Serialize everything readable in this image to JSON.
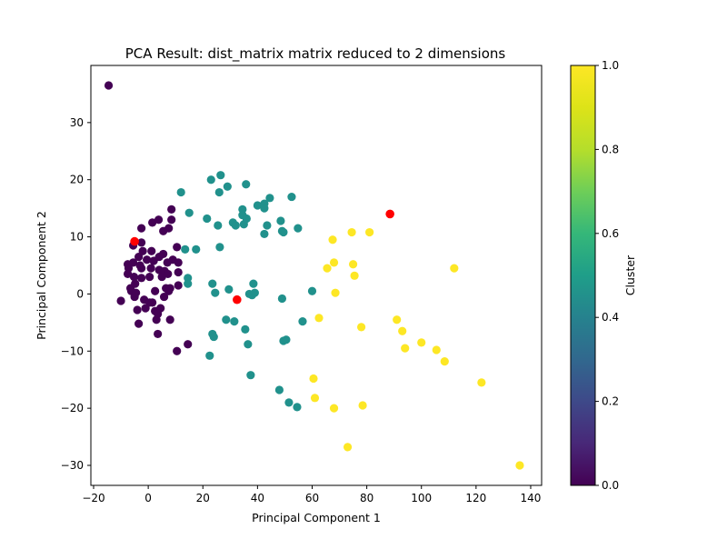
{
  "chart_data": {
    "type": "scatter",
    "title": "PCA Result: dist_matrix matrix reduced to 2 dimensions",
    "xlabel": "Principal Component 1",
    "ylabel": "Principal Component 2",
    "xlim": [
      -21,
      144
    ],
    "ylim": [
      -33.5,
      40
    ],
    "x_ticks": [
      -20,
      0,
      20,
      40,
      60,
      80,
      100,
      120,
      140
    ],
    "x_tick_labels": [
      "−20",
      "0",
      "20",
      "40",
      "60",
      "80",
      "100",
      "120",
      "140"
    ],
    "y_ticks": [
      -30,
      -20,
      -10,
      0,
      10,
      20,
      30
    ],
    "y_tick_labels": [
      "−30",
      "−20",
      "−10",
      "0",
      "10",
      "20",
      "30"
    ],
    "grid": false,
    "colorbar": {
      "label": "Cluster",
      "range": [
        0,
        1
      ],
      "colormap": "viridis",
      "ticks": [
        0,
        0.2,
        0.4,
        0.6,
        0.8,
        1.0
      ],
      "tick_labels": [
        "0.0",
        "0.2",
        "0.4",
        "0.6",
        "0.8",
        "1.0"
      ]
    },
    "series": [
      {
        "cluster": 0,
        "color": "#440154",
        "points": [
          [
            -14.5,
            36.5
          ],
          [
            -10,
            -1.2
          ],
          [
            -7.5,
            5.2
          ],
          [
            -7.5,
            3.5
          ],
          [
            -7.2,
            4.5
          ],
          [
            -6.5,
            1.0
          ],
          [
            -6.2,
            0.5
          ],
          [
            -5.5,
            8.5
          ],
          [
            -5.5,
            5.5
          ],
          [
            -5.2,
            3.0
          ],
          [
            -5.0,
            -0.5
          ],
          [
            -4.8,
            1.8
          ],
          [
            -4.5,
            0.2
          ],
          [
            -4.0,
            -2.8
          ],
          [
            -3.5,
            -5.2
          ],
          [
            -3.5,
            6.5
          ],
          [
            -3.0,
            5.0
          ],
          [
            -2.5,
            11.5
          ],
          [
            -2.5,
            4.5
          ],
          [
            -2.5,
            2.8
          ],
          [
            -2.5,
            9.0
          ],
          [
            -2.0,
            7.5
          ],
          [
            -1.5,
            -1.0
          ],
          [
            -1.0,
            -2.5
          ],
          [
            -0.5,
            6.0
          ],
          [
            0.5,
            -1.5
          ],
          [
            0.5,
            3.0
          ],
          [
            1.0,
            4.5
          ],
          [
            1.2,
            7.5
          ],
          [
            1.5,
            12.5
          ],
          [
            1.5,
            -1.5
          ],
          [
            2.0,
            5.8
          ],
          [
            2.5,
            -3.0
          ],
          [
            2.5,
            0.5
          ],
          [
            3.0,
            -4.5
          ],
          [
            3.5,
            -3.5
          ],
          [
            3.5,
            -7.0
          ],
          [
            3.8,
            13.0
          ],
          [
            4.0,
            6.5
          ],
          [
            4.0,
            4.2
          ],
          [
            4.5,
            -2.5
          ],
          [
            5.0,
            3.0
          ],
          [
            5.5,
            11.0
          ],
          [
            5.5,
            7.0
          ],
          [
            5.8,
            -0.5
          ],
          [
            6.0,
            4.0
          ],
          [
            6.5,
            1.0
          ],
          [
            7.0,
            5.5
          ],
          [
            7.2,
            3.5
          ],
          [
            7.5,
            0.5
          ],
          [
            7.5,
            11.5
          ],
          [
            8.0,
            1.0
          ],
          [
            8.0,
            -4.5
          ],
          [
            8.5,
            14.8
          ],
          [
            8.5,
            13.0
          ],
          [
            9.0,
            6.0
          ],
          [
            10.5,
            8.2
          ],
          [
            10.5,
            -10.0
          ],
          [
            11.0,
            5.5
          ],
          [
            11.0,
            3.8
          ],
          [
            11.0,
            1.5
          ],
          [
            14.5,
            -8.8
          ]
        ]
      },
      {
        "cluster": 0.5,
        "color": "#21918c",
        "points": [
          [
            12.0,
            17.8
          ],
          [
            13.5,
            7.8
          ],
          [
            14.5,
            2.8
          ],
          [
            14.5,
            1.8
          ],
          [
            15.0,
            14.2
          ],
          [
            17.5,
            7.8
          ],
          [
            21.5,
            13.2
          ],
          [
            22.5,
            -10.8
          ],
          [
            23.0,
            20.0
          ],
          [
            23.5,
            -7.0
          ],
          [
            23.5,
            1.8
          ],
          [
            24.0,
            -7.5
          ],
          [
            24.5,
            0.2
          ],
          [
            25.5,
            12.0
          ],
          [
            26.0,
            17.8
          ],
          [
            26.2,
            8.2
          ],
          [
            26.5,
            20.8
          ],
          [
            28.5,
            -4.5
          ],
          [
            29.0,
            18.8
          ],
          [
            29.5,
            0.8
          ],
          [
            31.0,
            12.5
          ],
          [
            31.5,
            -4.8
          ],
          [
            32.0,
            12.0
          ],
          [
            34.5,
            14.8
          ],
          [
            34.5,
            13.8
          ],
          [
            35.0,
            12.2
          ],
          [
            35.5,
            -6.2
          ],
          [
            35.8,
            19.2
          ],
          [
            36.0,
            13.2
          ],
          [
            36.5,
            -8.8
          ],
          [
            37.0,
            0.0
          ],
          [
            37.5,
            -14.2
          ],
          [
            38.0,
            -0.2
          ],
          [
            38.5,
            1.8
          ],
          [
            39.0,
            0.2
          ],
          [
            40.0,
            15.5
          ],
          [
            42.5,
            10.5
          ],
          [
            42.5,
            15.8
          ],
          [
            42.5,
            15.0
          ],
          [
            43.5,
            12.0
          ],
          [
            44.5,
            16.8
          ],
          [
            48.0,
            -16.8
          ],
          [
            48.5,
            12.8
          ],
          [
            49.0,
            11.0
          ],
          [
            49.0,
            -0.8
          ],
          [
            49.5,
            -8.2
          ],
          [
            49.5,
            10.8
          ],
          [
            50.5,
            -8.0
          ],
          [
            51.5,
            -19.0
          ],
          [
            52.5,
            17.0
          ],
          [
            54.5,
            -19.8
          ],
          [
            54.8,
            11.5
          ],
          [
            56.5,
            -4.8
          ],
          [
            60.0,
            0.5
          ]
        ]
      },
      {
        "cluster": 1,
        "color": "#fde725",
        "points": [
          [
            60.5,
            -14.8
          ],
          [
            61.0,
            -18.2
          ],
          [
            62.5,
            -4.2
          ],
          [
            65.5,
            4.5
          ],
          [
            67.5,
            9.5
          ],
          [
            68.0,
            5.5
          ],
          [
            68.0,
            -20.0
          ],
          [
            68.5,
            0.2
          ],
          [
            73.0,
            -26.8
          ],
          [
            74.5,
            10.8
          ],
          [
            75.0,
            5.2
          ],
          [
            75.5,
            3.2
          ],
          [
            78.0,
            -5.8
          ],
          [
            78.5,
            -19.5
          ],
          [
            81.0,
            10.8
          ],
          [
            91.0,
            -4.5
          ],
          [
            93.0,
            -6.5
          ],
          [
            94.0,
            -9.5
          ],
          [
            100.0,
            -8.5
          ],
          [
            105.5,
            -9.8
          ],
          [
            108.5,
            -11.8
          ],
          [
            112.0,
            4.5
          ],
          [
            122.0,
            -15.5
          ],
          [
            136.0,
            -30.0
          ]
        ]
      }
    ],
    "centroids": {
      "color": "#ff0000",
      "points": [
        [
          -5.0,
          9.2
        ],
        [
          32.5,
          -1.0
        ],
        [
          88.5,
          14.0
        ]
      ]
    }
  }
}
